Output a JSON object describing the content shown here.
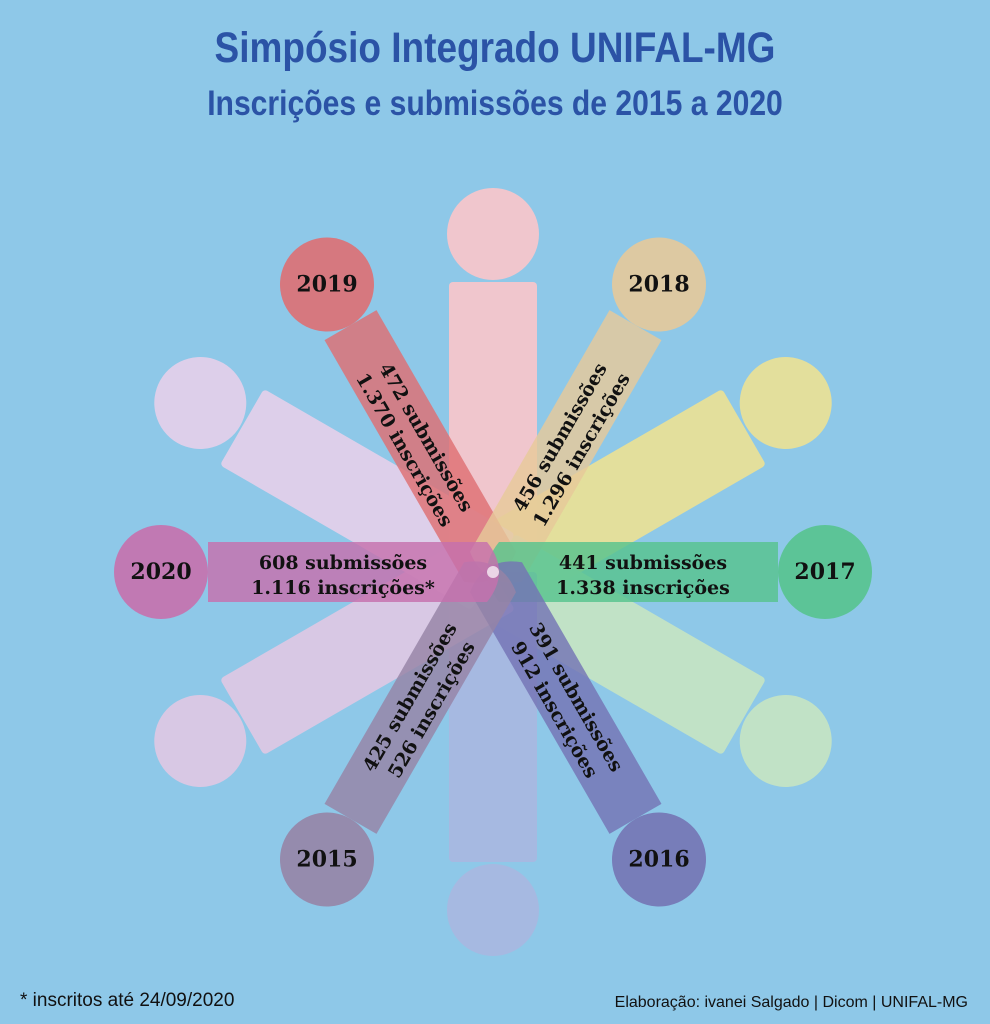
{
  "title": "Simpósio Integrado UNIFAL-MG",
  "subtitle": "Inscrições e submissões de 2015 a 2020",
  "footnote": "* inscritos até 24/09/2020",
  "credit": "Elaboração: ivanei Salgado | Dicom | UNIFAL-MG",
  "colors": {
    "background": "#8ec8e8",
    "title": "#2b53a6"
  },
  "years": [
    {
      "year": "2019",
      "submissions": "472 submissões",
      "registrations": "1.370 inscrições",
      "color": "#de6f73"
    },
    {
      "year": "2018",
      "submissions": "456 submissões",
      "registrations": "1.296 inscrições",
      "color": "#e6c99a"
    },
    {
      "year": "2017",
      "submissions": "441 submissões",
      "registrations": "1.338 inscrições",
      "color": "#57c38e"
    },
    {
      "year": "2016",
      "submissions": "391 submissões",
      "registrations": "912 inscrições",
      "color": "#7474b4"
    },
    {
      "year": "2015",
      "submissions": "425 submissões",
      "registrations": "526 inscrições",
      "color": "#9684a6"
    },
    {
      "year": "2020",
      "submissions": "608 submissões",
      "registrations": "1.116 inscrições*",
      "color": "#c670ad"
    }
  ]
}
